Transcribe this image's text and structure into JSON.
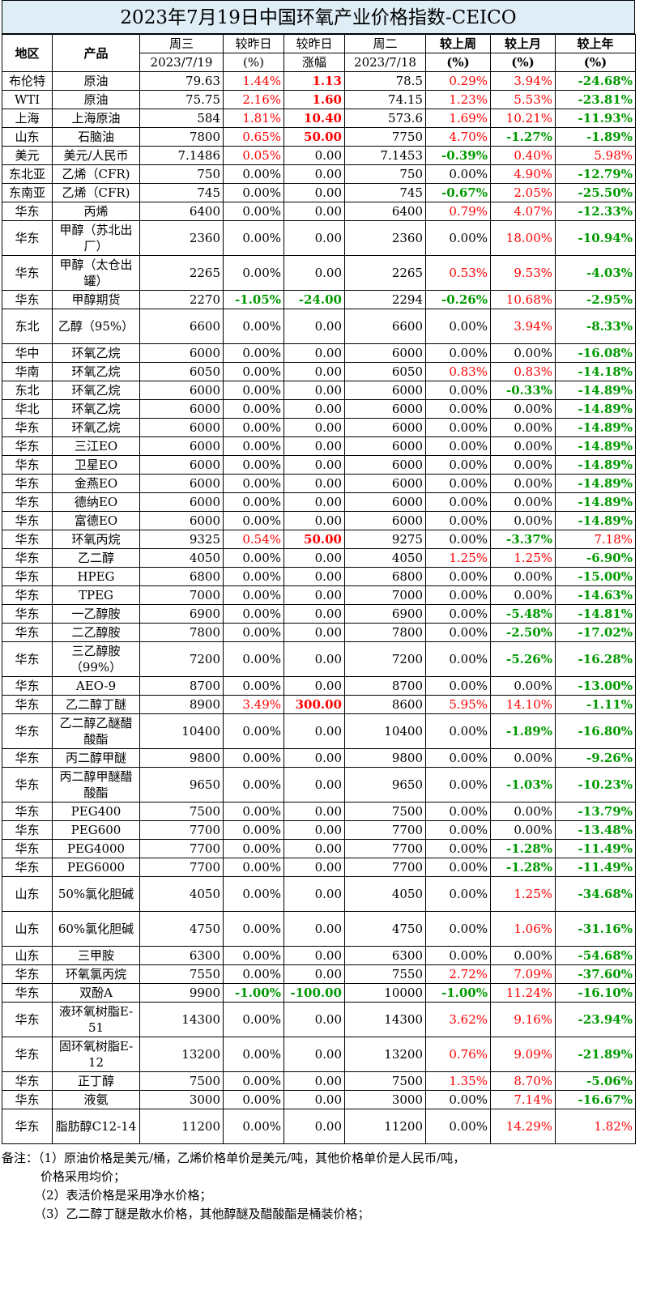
{
  "title": "2023年7月19日中国环氧产业价格指数-CEICO",
  "header": {
    "region": "地区",
    "product": "产品",
    "wed": "周三",
    "wed_date": "2023/7/19",
    "vs_yest": "较昨日",
    "pct": "(%)",
    "vs_yest2": "较昨日",
    "change": "涨幅",
    "tue": "周二",
    "tue_date": "2023/7/18",
    "vs_week": "较上周",
    "vs_month": "较上月",
    "vs_year": "较上年"
  },
  "rows": [
    {
      "region": "布伦特",
      "product": "原油",
      "wed": "79.63",
      "pct": "1.44%",
      "chg": "1.13",
      "tue": "78.5",
      "week": "0.29%",
      "month": "3.94%",
      "year": "-24.68%",
      "tall": false
    },
    {
      "region": "WTI",
      "product": "原油",
      "wed": "75.75",
      "pct": "2.16%",
      "chg": "1.60",
      "tue": "74.15",
      "week": "1.23%",
      "month": "5.53%",
      "year": "-23.81%",
      "tall": false
    },
    {
      "region": "上海",
      "product": "上海原油",
      "wed": "584",
      "pct": "1.81%",
      "chg": "10.40",
      "tue": "573.6",
      "week": "1.69%",
      "month": "10.21%",
      "year": "-11.93%",
      "tall": false
    },
    {
      "region": "山东",
      "product": "石脑油",
      "wed": "7800",
      "pct": "0.65%",
      "chg": "50.00",
      "tue": "7750",
      "week": "4.70%",
      "month": "-1.27%",
      "year": "-1.89%",
      "tall": false
    },
    {
      "region": "美元",
      "product": "美元/人民币",
      "wed": "7.1486",
      "pct": "0.05%",
      "chg": "0.00",
      "tue": "7.1453",
      "week": "-0.39%",
      "month": "0.40%",
      "year": "5.98%",
      "tall": false
    },
    {
      "region": "东北亚",
      "product": "乙烯（CFR)",
      "wed": "750",
      "pct": "0.00%",
      "chg": "0.00",
      "tue": "750",
      "week": "0.00%",
      "month": "4.90%",
      "year": "-12.79%",
      "tall": false
    },
    {
      "region": "东南亚",
      "product": "乙烯（CFR)",
      "wed": "745",
      "pct": "0.00%",
      "chg": "0.00",
      "tue": "745",
      "week": "-0.67%",
      "month": "2.05%",
      "year": "-25.50%",
      "tall": false
    },
    {
      "region": "华东",
      "product": "丙烯",
      "wed": "6400",
      "pct": "0.00%",
      "chg": "0.00",
      "tue": "6400",
      "week": "0.79%",
      "month": "4.07%",
      "year": "-12.33%",
      "tall": false
    },
    {
      "region": "华东",
      "product": "甲醇（苏北出厂）",
      "wed": "2360",
      "pct": "0.00%",
      "chg": "0.00",
      "tue": "2360",
      "week": "0.00%",
      "month": "18.00%",
      "year": "-10.94%",
      "tall": true
    },
    {
      "region": "华东",
      "product": "甲醇（太仓出罐）",
      "wed": "2265",
      "pct": "0.00%",
      "chg": "0.00",
      "tue": "2265",
      "week": "0.53%",
      "month": "9.53%",
      "year": "-4.03%",
      "tall": true
    },
    {
      "region": "华东",
      "product": "甲醇期货",
      "wed": "2270",
      "pct": "-1.05%",
      "chg": "-24.00",
      "tue": "2294",
      "week": "-0.26%",
      "month": "10.68%",
      "year": "-2.95%",
      "tall": false
    },
    {
      "region": "东北",
      "product": "乙醇（95%）",
      "wed": "6600",
      "pct": "0.00%",
      "chg": "0.00",
      "tue": "6600",
      "week": "0.00%",
      "month": "3.94%",
      "year": "-8.33%",
      "tall": true
    },
    {
      "region": "华中",
      "product": "环氧乙烷",
      "wed": "6000",
      "pct": "0.00%",
      "chg": "0.00",
      "tue": "6000",
      "week": "0.00%",
      "month": "0.00%",
      "year": "-16.08%",
      "tall": false
    },
    {
      "region": "华南",
      "product": "环氧乙烷",
      "wed": "6050",
      "pct": "0.00%",
      "chg": "0.00",
      "tue": "6050",
      "week": "0.83%",
      "month": "0.83%",
      "year": "-14.18%",
      "tall": false
    },
    {
      "region": "东北",
      "product": "环氧乙烷",
      "wed": "6000",
      "pct": "0.00%",
      "chg": "0.00",
      "tue": "6000",
      "week": "0.00%",
      "month": "-0.33%",
      "year": "-14.89%",
      "tall": false
    },
    {
      "region": "华北",
      "product": "环氧乙烷",
      "wed": "6000",
      "pct": "0.00%",
      "chg": "0.00",
      "tue": "6000",
      "week": "0.00%",
      "month": "0.00%",
      "year": "-14.89%",
      "tall": false
    },
    {
      "region": "华东",
      "product": "环氧乙烷",
      "wed": "6000",
      "pct": "0.00%",
      "chg": "0.00",
      "tue": "6000",
      "week": "0.00%",
      "month": "0.00%",
      "year": "-14.89%",
      "tall": false
    },
    {
      "region": "华东",
      "product": "三江EO",
      "wed": "6000",
      "pct": "0.00%",
      "chg": "0.00",
      "tue": "6000",
      "week": "0.00%",
      "month": "0.00%",
      "year": "-14.89%",
      "tall": false
    },
    {
      "region": "华东",
      "product": "卫星EO",
      "wed": "6000",
      "pct": "0.00%",
      "chg": "0.00",
      "tue": "6000",
      "week": "0.00%",
      "month": "0.00%",
      "year": "-14.89%",
      "tall": false
    },
    {
      "region": "华东",
      "product": "金燕EO",
      "wed": "6000",
      "pct": "0.00%",
      "chg": "0.00",
      "tue": "6000",
      "week": "0.00%",
      "month": "0.00%",
      "year": "-14.89%",
      "tall": false
    },
    {
      "region": "华东",
      "product": "德纳EO",
      "wed": "6000",
      "pct": "0.00%",
      "chg": "0.00",
      "tue": "6000",
      "week": "0.00%",
      "month": "0.00%",
      "year": "-14.89%",
      "tall": false
    },
    {
      "region": "华东",
      "product": "富德EO",
      "wed": "6000",
      "pct": "0.00%",
      "chg": "0.00",
      "tue": "6000",
      "week": "0.00%",
      "month": "0.00%",
      "year": "-14.89%",
      "tall": false
    },
    {
      "region": "华东",
      "product": "环氧丙烷",
      "wed": "9325",
      "pct": "0.54%",
      "chg": "50.00",
      "tue": "9275",
      "week": "0.00%",
      "month": "-3.37%",
      "year": "7.18%",
      "tall": false
    },
    {
      "region": "华东",
      "product": "乙二醇",
      "wed": "4050",
      "pct": "0.00%",
      "chg": "0.00",
      "tue": "4050",
      "week": "1.25%",
      "month": "1.25%",
      "year": "-6.90%",
      "tall": false
    },
    {
      "region": "华东",
      "product": "HPEG",
      "wed": "6800",
      "pct": "0.00%",
      "chg": "0.00",
      "tue": "6800",
      "week": "0.00%",
      "month": "0.00%",
      "year": "-15.00%",
      "tall": false
    },
    {
      "region": "华东",
      "product": "TPEG",
      "wed": "7000",
      "pct": "0.00%",
      "chg": "0.00",
      "tue": "7000",
      "week": "0.00%",
      "month": "0.00%",
      "year": "-14.63%",
      "tall": false
    },
    {
      "region": "华东",
      "product": "一乙醇胺",
      "wed": "6900",
      "pct": "0.00%",
      "chg": "0.00",
      "tue": "6900",
      "week": "0.00%",
      "month": "-5.48%",
      "year": "-14.81%",
      "tall": false
    },
    {
      "region": "华东",
      "product": "二乙醇胺",
      "wed": "7800",
      "pct": "0.00%",
      "chg": "0.00",
      "tue": "7800",
      "week": "0.00%",
      "month": "-2.50%",
      "year": "-17.02%",
      "tall": false
    },
    {
      "region": "华东",
      "product": "三乙醇胺（99%）",
      "wed": "7200",
      "pct": "0.00%",
      "chg": "0.00",
      "tue": "7200",
      "week": "0.00%",
      "month": "-5.26%",
      "year": "-16.28%",
      "tall": true
    },
    {
      "region": "华东",
      "product": "AEO-9",
      "wed": "8700",
      "pct": "0.00%",
      "chg": "0.00",
      "tue": "8700",
      "week": "0.00%",
      "month": "0.00%",
      "year": "-13.00%",
      "tall": false
    },
    {
      "region": "华东",
      "product": "乙二醇丁醚",
      "wed": "8900",
      "pct": "3.49%",
      "chg": "300.00",
      "tue": "8600",
      "week": "5.95%",
      "month": "14.10%",
      "year": "-1.11%",
      "tall": false
    },
    {
      "region": "华东",
      "product": "乙二醇乙醚醋酸酯",
      "wed": "10400",
      "pct": "0.00%",
      "chg": "0.00",
      "tue": "10400",
      "week": "0.00%",
      "month": "-1.89%",
      "year": "-16.80%",
      "tall": true
    },
    {
      "region": "华东",
      "product": "丙二醇甲醚",
      "wed": "9800",
      "pct": "0.00%",
      "chg": "0.00",
      "tue": "9800",
      "week": "0.00%",
      "month": "0.00%",
      "year": "-9.26%",
      "tall": false
    },
    {
      "region": "华东",
      "product": "丙二醇甲醚醋酸酯",
      "wed": "9650",
      "pct": "0.00%",
      "chg": "0.00",
      "tue": "9650",
      "week": "0.00%",
      "month": "-1.03%",
      "year": "-10.23%",
      "tall": true
    },
    {
      "region": "华东",
      "product": "PEG400",
      "wed": "7500",
      "pct": "0.00%",
      "chg": "0.00",
      "tue": "7500",
      "week": "0.00%",
      "month": "0.00%",
      "year": "-13.79%",
      "tall": false
    },
    {
      "region": "华东",
      "product": "PEG600",
      "wed": "7700",
      "pct": "0.00%",
      "chg": "0.00",
      "tue": "7700",
      "week": "0.00%",
      "month": "0.00%",
      "year": "-13.48%",
      "tall": false
    },
    {
      "region": "华东",
      "product": "PEG4000",
      "wed": "7700",
      "pct": "0.00%",
      "chg": "0.00",
      "tue": "7700",
      "week": "0.00%",
      "month": "-1.28%",
      "year": "-11.49%",
      "tall": false
    },
    {
      "region": "华东",
      "product": "PEG6000",
      "wed": "7700",
      "pct": "0.00%",
      "chg": "0.00",
      "tue": "7700",
      "week": "0.00%",
      "month": "-1.28%",
      "year": "-11.49%",
      "tall": false
    },
    {
      "region": "山东",
      "product": "50%氯化胆碱",
      "wed": "4050",
      "pct": "0.00%",
      "chg": "0.00",
      "tue": "4050",
      "week": "0.00%",
      "month": "1.25%",
      "year": "-34.68%",
      "tall": true
    },
    {
      "region": "山东",
      "product": "60%氯化胆碱",
      "wed": "4750",
      "pct": "0.00%",
      "chg": "0.00",
      "tue": "4750",
      "week": "0.00%",
      "month": "1.06%",
      "year": "-31.16%",
      "tall": true
    },
    {
      "region": "山东",
      "product": "三甲胺",
      "wed": "6300",
      "pct": "0.00%",
      "chg": "0.00",
      "tue": "6300",
      "week": "0.00%",
      "month": "0.00%",
      "year": "-54.68%",
      "tall": false
    },
    {
      "region": "华东",
      "product": "环氧氯丙烷",
      "wed": "7550",
      "pct": "0.00%",
      "chg": "0.00",
      "tue": "7550",
      "week": "2.72%",
      "month": "7.09%",
      "year": "-37.60%",
      "tall": false
    },
    {
      "region": "华东",
      "product": "双酚A",
      "wed": "9900",
      "pct": "-1.00%",
      "chg": "-100.00",
      "tue": "10000",
      "week": "-1.00%",
      "month": "11.24%",
      "year": "-16.10%",
      "tall": false
    },
    {
      "region": "华东",
      "product": "液环氧树脂E-51",
      "wed": "14300",
      "pct": "0.00%",
      "chg": "0.00",
      "tue": "14300",
      "week": "3.62%",
      "month": "9.16%",
      "year": "-23.94%",
      "tall": true
    },
    {
      "region": "华东",
      "product": "固环氧树脂E-12",
      "wed": "13200",
      "pct": "0.00%",
      "chg": "0.00",
      "tue": "13200",
      "week": "0.76%",
      "month": "9.09%",
      "year": "-21.89%",
      "tall": true
    },
    {
      "region": "华东",
      "product": "正丁醇",
      "wed": "7500",
      "pct": "0.00%",
      "chg": "0.00",
      "tue": "7500",
      "week": "1.35%",
      "month": "8.70%",
      "year": "-5.06%",
      "tall": false
    },
    {
      "region": "华东",
      "product": "液氨",
      "wed": "3000",
      "pct": "0.00%",
      "chg": "0.00",
      "tue": "3000",
      "week": "0.00%",
      "month": "7.14%",
      "year": "-16.67%",
      "tall": false
    },
    {
      "region": "华东",
      "product": "脂肪醇C12-14",
      "wed": "11200",
      "pct": "0.00%",
      "chg": "0.00",
      "tue": "11200",
      "week": "0.00%",
      "month": "14.29%",
      "year": "1.82%",
      "tall": true
    }
  ],
  "notes": [
    "备注：（1）原油价格是美元/桶，乙烯价格单价是美元/吨，其他价格单价是人民币/吨，",
    "价格采用均价；",
    "（2）表活价格是采用净水价格；",
    "（3）乙二醇丁醚是散水价格，其他醇醚及醋酸酯是桶装价格；"
  ]
}
